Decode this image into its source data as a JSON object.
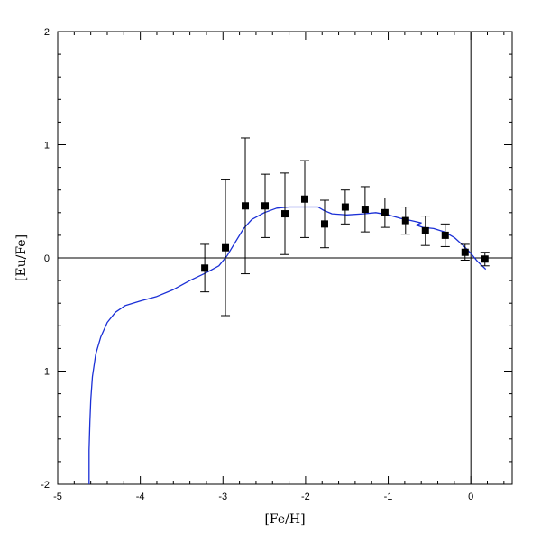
{
  "chart_data": {
    "type": "scatter",
    "title": "",
    "xlabel": "[Fe/H]",
    "ylabel": "[Eu/Fe]",
    "xlim": [
      -5,
      0.5
    ],
    "ylim": [
      -2,
      2
    ],
    "xticks": [
      -5,
      -4,
      -3,
      -2,
      -1,
      0
    ],
    "yticks": [
      -2,
      -1,
      0,
      1,
      2
    ],
    "grid": false,
    "reference_lines": {
      "x": 0,
      "y": 0
    },
    "series": [
      {
        "kind": "points_with_errorbars",
        "marker": "square",
        "color": "#000000",
        "points": [
          {
            "x": -3.22,
            "y": -0.09,
            "err": 0.21
          },
          {
            "x": -2.97,
            "y": 0.09,
            "err": 0.6
          },
          {
            "x": -2.73,
            "y": 0.46,
            "err": 0.6
          },
          {
            "x": -2.49,
            "y": 0.46,
            "err": 0.28
          },
          {
            "x": -2.25,
            "y": 0.39,
            "err": 0.36
          },
          {
            "x": -2.01,
            "y": 0.52,
            "err": 0.34
          },
          {
            "x": -1.77,
            "y": 0.3,
            "err": 0.21
          },
          {
            "x": -1.52,
            "y": 0.45,
            "err": 0.15
          },
          {
            "x": -1.28,
            "y": 0.43,
            "err": 0.2
          },
          {
            "x": -1.04,
            "y": 0.4,
            "err": 0.13
          },
          {
            "x": -0.79,
            "y": 0.33,
            "err": 0.12
          },
          {
            "x": -0.55,
            "y": 0.24,
            "err": 0.13
          },
          {
            "x": -0.31,
            "y": 0.2,
            "err": 0.1
          },
          {
            "x": -0.07,
            "y": 0.05,
            "err": 0.07
          },
          {
            "x": 0.17,
            "y": -0.01,
            "err": 0.06
          }
        ]
      },
      {
        "kind": "model_curve",
        "color": "#1a2fd6",
        "points": [
          [
            -4.62,
            -2.0
          ],
          [
            -4.62,
            -1.7
          ],
          [
            -4.61,
            -1.45
          ],
          [
            -4.6,
            -1.25
          ],
          [
            -4.58,
            -1.05
          ],
          [
            -4.54,
            -0.85
          ],
          [
            -4.48,
            -0.7
          ],
          [
            -4.4,
            -0.57
          ],
          [
            -4.3,
            -0.48
          ],
          [
            -4.18,
            -0.42
          ],
          [
            -4.0,
            -0.38
          ],
          [
            -3.8,
            -0.34
          ],
          [
            -3.6,
            -0.28
          ],
          [
            -3.4,
            -0.2
          ],
          [
            -3.2,
            -0.13
          ],
          [
            -3.05,
            -0.07
          ],
          [
            -2.95,
            0.02
          ],
          [
            -2.85,
            0.14
          ],
          [
            -2.75,
            0.26
          ],
          [
            -2.65,
            0.34
          ],
          [
            -2.5,
            0.4
          ],
          [
            -2.35,
            0.44
          ],
          [
            -2.2,
            0.45
          ],
          [
            -2.0,
            0.45
          ],
          [
            -1.85,
            0.45
          ],
          [
            -1.78,
            0.42
          ],
          [
            -1.68,
            0.39
          ],
          [
            -1.5,
            0.38
          ],
          [
            -1.3,
            0.39
          ],
          [
            -1.15,
            0.4
          ],
          [
            -1.0,
            0.38
          ],
          [
            -0.85,
            0.35
          ],
          [
            -0.72,
            0.33
          ],
          [
            -0.6,
            0.31
          ],
          [
            -0.66,
            0.29
          ],
          [
            -0.58,
            0.27
          ],
          [
            -0.45,
            0.26
          ],
          [
            -0.32,
            0.23
          ],
          [
            -0.2,
            0.18
          ],
          [
            -0.08,
            0.1
          ],
          [
            0.0,
            0.04
          ],
          [
            0.08,
            -0.03
          ],
          [
            0.18,
            -0.1
          ]
        ]
      }
    ]
  }
}
